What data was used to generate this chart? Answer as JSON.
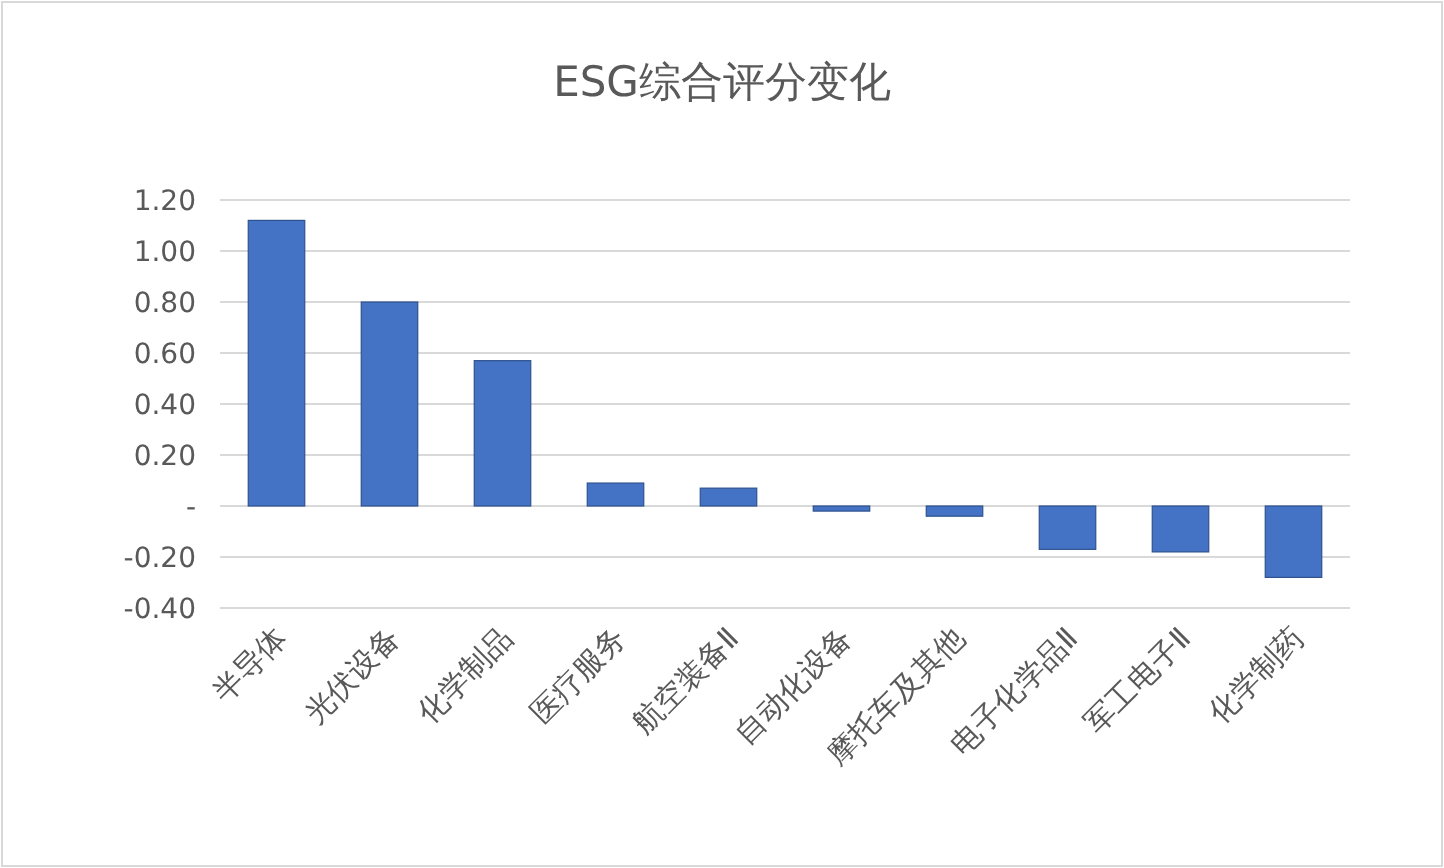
{
  "chart_data": {
    "type": "bar",
    "title": "ESG综合评分变化",
    "categories": [
      "半导体",
      "光伏设备",
      "化学制品",
      "医疗服务",
      "航空装备Ⅱ",
      "自动化设备",
      "摩托车及其他",
      "电子化学品Ⅱ",
      "军工电子Ⅱ",
      "化学制药"
    ],
    "values": [
      1.12,
      0.8,
      0.57,
      0.09,
      0.07,
      -0.02,
      -0.04,
      -0.17,
      -0.18,
      -0.28
    ],
    "color": "#4472c4",
    "ylim": [
      -0.4,
      1.2
    ],
    "yticks": [
      {
        "value": -0.4,
        "label": "-0.40"
      },
      {
        "value": -0.2,
        "label": "-0.20"
      },
      {
        "value": 0,
        "label": "-"
      },
      {
        "value": 0.2,
        "label": "0.20"
      },
      {
        "value": 0.4,
        "label": "0.40"
      },
      {
        "value": 0.6,
        "label": "0.60"
      },
      {
        "value": 0.8,
        "label": "0.80"
      },
      {
        "value": 1.0,
        "label": "1.00"
      },
      {
        "value": 1.2,
        "label": "1.20"
      }
    ],
    "grid": "y"
  }
}
